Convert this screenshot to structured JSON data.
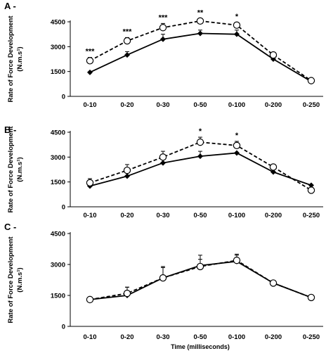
{
  "chart_data": [
    {
      "type": "line",
      "panel_label": "A -",
      "ylabel": "Rate of Force Development",
      "yunit": "(N.m.s¹)",
      "categories": [
        "0-10",
        "0-20",
        "0-30",
        "0-50",
        "0-100",
        "0-200",
        "0-250"
      ],
      "ylim": [
        0,
        4500
      ],
      "yticks": [
        0,
        1500,
        3000,
        4500
      ],
      "series": [
        {
          "style": "solid-filled-diamond",
          "values": [
            1450,
            2500,
            3450,
            3800,
            3750,
            2250,
            900
          ],
          "error": [
            0,
            200,
            300,
            200,
            250,
            0,
            0
          ]
        },
        {
          "style": "dashed-open-circle",
          "values": [
            2150,
            3350,
            4150,
            4550,
            4300,
            2500,
            950
          ],
          "error": [
            200,
            200,
            250,
            150,
            150,
            0,
            0
          ]
        }
      ],
      "annotations": [
        "***",
        "***",
        "***",
        "**",
        "*",
        "",
        ""
      ]
    },
    {
      "type": "line",
      "panel_label": "B -",
      "ylabel": "Rate of Force Development",
      "yunit": "(N.m.s¹)",
      "categories": [
        "0-10",
        "0-20",
        "0-30",
        "0-50",
        "0-100",
        "0-200",
        "0-250"
      ],
      "ylim": [
        0,
        4500
      ],
      "yticks": [
        0,
        1500,
        3000,
        4500
      ],
      "series": [
        {
          "style": "solid-filled-diamond",
          "values": [
            1250,
            1850,
            2650,
            3050,
            3250,
            2100,
            1300
          ],
          "error": [
            0,
            0,
            0,
            300,
            0,
            0,
            0
          ]
        },
        {
          "style": "dashed-open-circle",
          "values": [
            1450,
            2200,
            3000,
            3900,
            3700,
            2400,
            1000
          ],
          "error": [
            250,
            350,
            350,
            300,
            250,
            0,
            0
          ]
        }
      ],
      "annotations": [
        "",
        "",
        "",
        "*",
        "*",
        "",
        ""
      ]
    },
    {
      "type": "line",
      "panel_label": "C -",
      "ylabel": "Rate of Force Development",
      "yunit": "(N.m.s¹)",
      "xlabel": "Time (milliseconds)",
      "categories": [
        "0-10",
        "0-20",
        "0-30",
        "0-50",
        "0-100",
        "0-200",
        "0-250"
      ],
      "ylim": [
        0,
        4500
      ],
      "yticks": [
        0,
        1500,
        3000,
        4500
      ],
      "series": [
        {
          "style": "solid-filled-diamond",
          "values": [
            1300,
            1500,
            2350,
            2950,
            3150,
            2100,
            1400
          ],
          "error": [
            0,
            400,
            550,
            500,
            300,
            0,
            0
          ]
        },
        {
          "style": "dashed-open-circle",
          "values": [
            1300,
            1600,
            2350,
            2900,
            3200,
            2100,
            1400
          ],
          "error": [
            0,
            300,
            500,
            350,
            300,
            0,
            0
          ]
        }
      ],
      "annotations": [
        "",
        "",
        "",
        "",
        "",
        "",
        ""
      ]
    }
  ]
}
